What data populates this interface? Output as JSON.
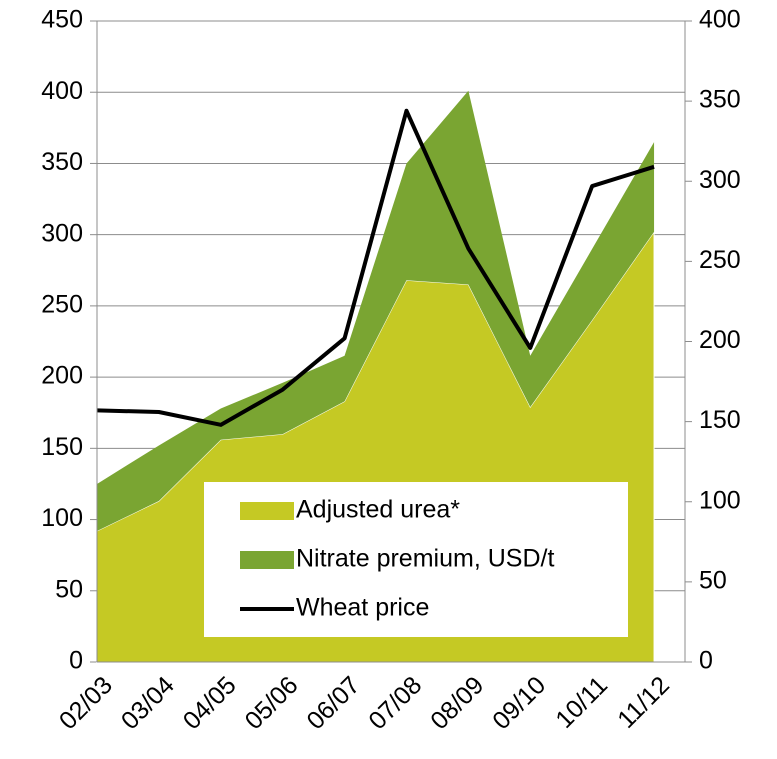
{
  "chart_data": {
    "type": "stacked-area-line",
    "categories": [
      "02/03",
      "03/04",
      "04/05",
      "05/06",
      "06/07",
      "07/08",
      "08/09",
      "09/10",
      "10/11",
      "11/12"
    ],
    "series": [
      {
        "name": "Adjusted urea*",
        "color": "#c5c924",
        "values": [
          92,
          113,
          156,
          160,
          183,
          268,
          265,
          179,
          240,
          302
        ]
      },
      {
        "name": "Nitrate premium, USD/t",
        "color": "#7aa532",
        "values": [
          33,
          39,
          22,
          36,
          32,
          82,
          136,
          36,
          50,
          63
        ]
      },
      {
        "name": "Wheat price",
        "color": "#000000",
        "axis": "y2",
        "values": [
          157,
          156,
          148,
          170,
          202,
          344,
          258,
          196,
          297,
          309
        ]
      }
    ],
    "ylim": [
      0,
      450
    ],
    "yticks": [
      0,
      50,
      100,
      150,
      200,
      250,
      300,
      350,
      400,
      450
    ],
    "y2lim": [
      0,
      400
    ],
    "y2ticks": [
      0,
      50,
      100,
      150,
      200,
      250,
      300,
      350,
      400
    ],
    "grid": true
  }
}
